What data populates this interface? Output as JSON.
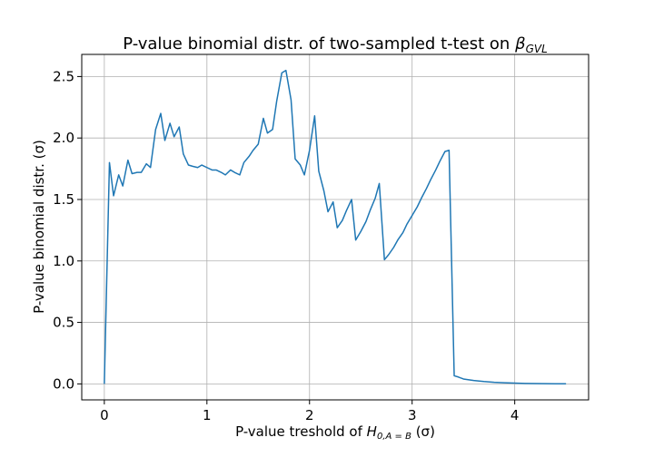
{
  "chart_data": {
    "type": "line",
    "title": "P-value binomial distr. of two-sampled t-test on ",
    "title_math": "β",
    "title_math_sub": "GVL",
    "xlabel": "P-value treshold of ",
    "xlabel_math": "H",
    "xlabel_math_sub": "0,A = B",
    "xlabel_unit": " (σ)",
    "ylabel": "P-value binomial distr. (σ)",
    "xlim": [
      -0.22,
      4.72
    ],
    "ylim": [
      -0.13,
      2.68
    ],
    "grid": true,
    "x_ticks": [
      0,
      1,
      2,
      3,
      4
    ],
    "x_tick_labels": [
      "0",
      "1",
      "2",
      "3",
      "4"
    ],
    "y_ticks": [
      0.0,
      0.5,
      1.0,
      1.5,
      2.0,
      2.5
    ],
    "y_tick_labels": [
      "0.0",
      "0.5",
      "1.0",
      "1.5",
      "2.0",
      "2.5"
    ],
    "line_color": "#1f77b4",
    "series": [
      {
        "x": [
          0,
          0.05,
          0.09,
          0.14,
          0.18,
          0.23,
          0.27,
          0.32,
          0.36,
          0.41,
          0.45,
          0.5,
          0.55,
          0.59,
          0.64,
          0.68,
          0.73,
          0.77,
          0.82,
          0.86,
          0.91,
          0.95,
          1.0,
          1.05,
          1.09,
          1.14,
          1.18,
          1.23,
          1.27,
          1.32,
          1.36,
          1.41,
          1.45,
          1.5,
          1.55,
          1.59,
          1.64,
          1.68,
          1.73,
          1.77,
          1.82,
          1.86,
          1.91,
          1.95,
          2.0,
          2.05,
          2.09,
          2.14,
          2.18,
          2.23,
          2.27,
          2.32,
          2.36,
          2.41,
          2.45,
          2.5,
          2.55,
          2.59,
          2.64,
          2.68,
          2.73,
          2.77,
          2.82,
          2.86,
          2.91,
          2.95,
          3.0,
          3.05,
          3.09,
          3.14,
          3.18,
          3.23,
          3.27,
          3.32,
          3.36,
          3.41,
          3.45,
          3.5,
          3.6,
          3.7,
          3.8,
          3.9,
          4.0,
          4.1,
          4.2,
          4.3,
          4.4,
          4.5
        ],
        "y": [
          0.0,
          1.8,
          1.53,
          1.7,
          1.61,
          1.82,
          1.71,
          1.72,
          1.72,
          1.79,
          1.76,
          2.07,
          2.2,
          1.98,
          2.12,
          2.01,
          2.09,
          1.87,
          1.78,
          1.77,
          1.76,
          1.78,
          1.76,
          1.74,
          1.74,
          1.72,
          1.7,
          1.74,
          1.72,
          1.7,
          1.8,
          1.85,
          1.9,
          1.95,
          2.16,
          2.04,
          2.07,
          2.3,
          2.53,
          2.55,
          2.31,
          1.83,
          1.78,
          1.7,
          1.9,
          2.18,
          1.73,
          1.57,
          1.4,
          1.48,
          1.27,
          1.33,
          1.41,
          1.5,
          1.17,
          1.24,
          1.32,
          1.41,
          1.51,
          1.63,
          1.01,
          1.05,
          1.11,
          1.17,
          1.23,
          1.3,
          1.37,
          1.44,
          1.51,
          1.59,
          1.66,
          1.74,
          1.81,
          1.89,
          1.9,
          0.066,
          0.056,
          0.04,
          0.028,
          0.019,
          0.013,
          0.009,
          0.006,
          0.004,
          0.003,
          0.002,
          0.001,
          0.001
        ]
      }
    ]
  }
}
